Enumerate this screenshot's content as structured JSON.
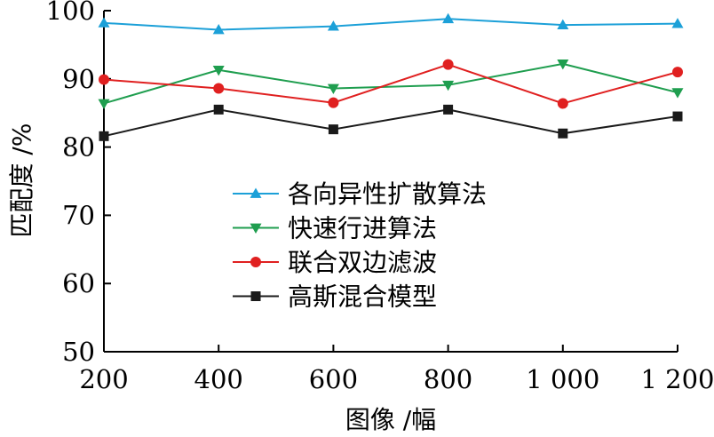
{
  "chart_data": {
    "type": "line",
    "x": [
      200,
      400,
      600,
      800,
      1000,
      1200
    ],
    "x_tick_labels": [
      "200",
      "400",
      "600",
      "800",
      "1 000",
      "1 200"
    ],
    "xlabel": "图像 /幅",
    "ylabel": "匹配度 /%",
    "ylim": [
      50,
      100
    ],
    "y_ticks": [
      50,
      60,
      70,
      80,
      90,
      100
    ],
    "grid": false,
    "legend_position": "center-left",
    "series": [
      {
        "name": "各向异性扩散算法",
        "marker": "triangle-up",
        "color": "#1ca0d8",
        "values": [
          98.2,
          97.2,
          97.7,
          98.8,
          97.9,
          98.1
        ]
      },
      {
        "name": "快速行进算法",
        "marker": "triangle-down",
        "color": "#1f9e4f",
        "values": [
          86.4,
          91.3,
          88.6,
          89.1,
          92.2,
          88.0
        ]
      },
      {
        "name": "联合双边滤波",
        "marker": "circle",
        "color": "#e02020",
        "values": [
          89.9,
          88.6,
          86.5,
          92.1,
          86.4,
          91.0
        ]
      },
      {
        "name": "高斯混合模型",
        "marker": "square",
        "color": "#1a1a1a",
        "values": [
          81.6,
          85.5,
          82.6,
          85.5,
          82.0,
          84.5
        ]
      }
    ]
  }
}
